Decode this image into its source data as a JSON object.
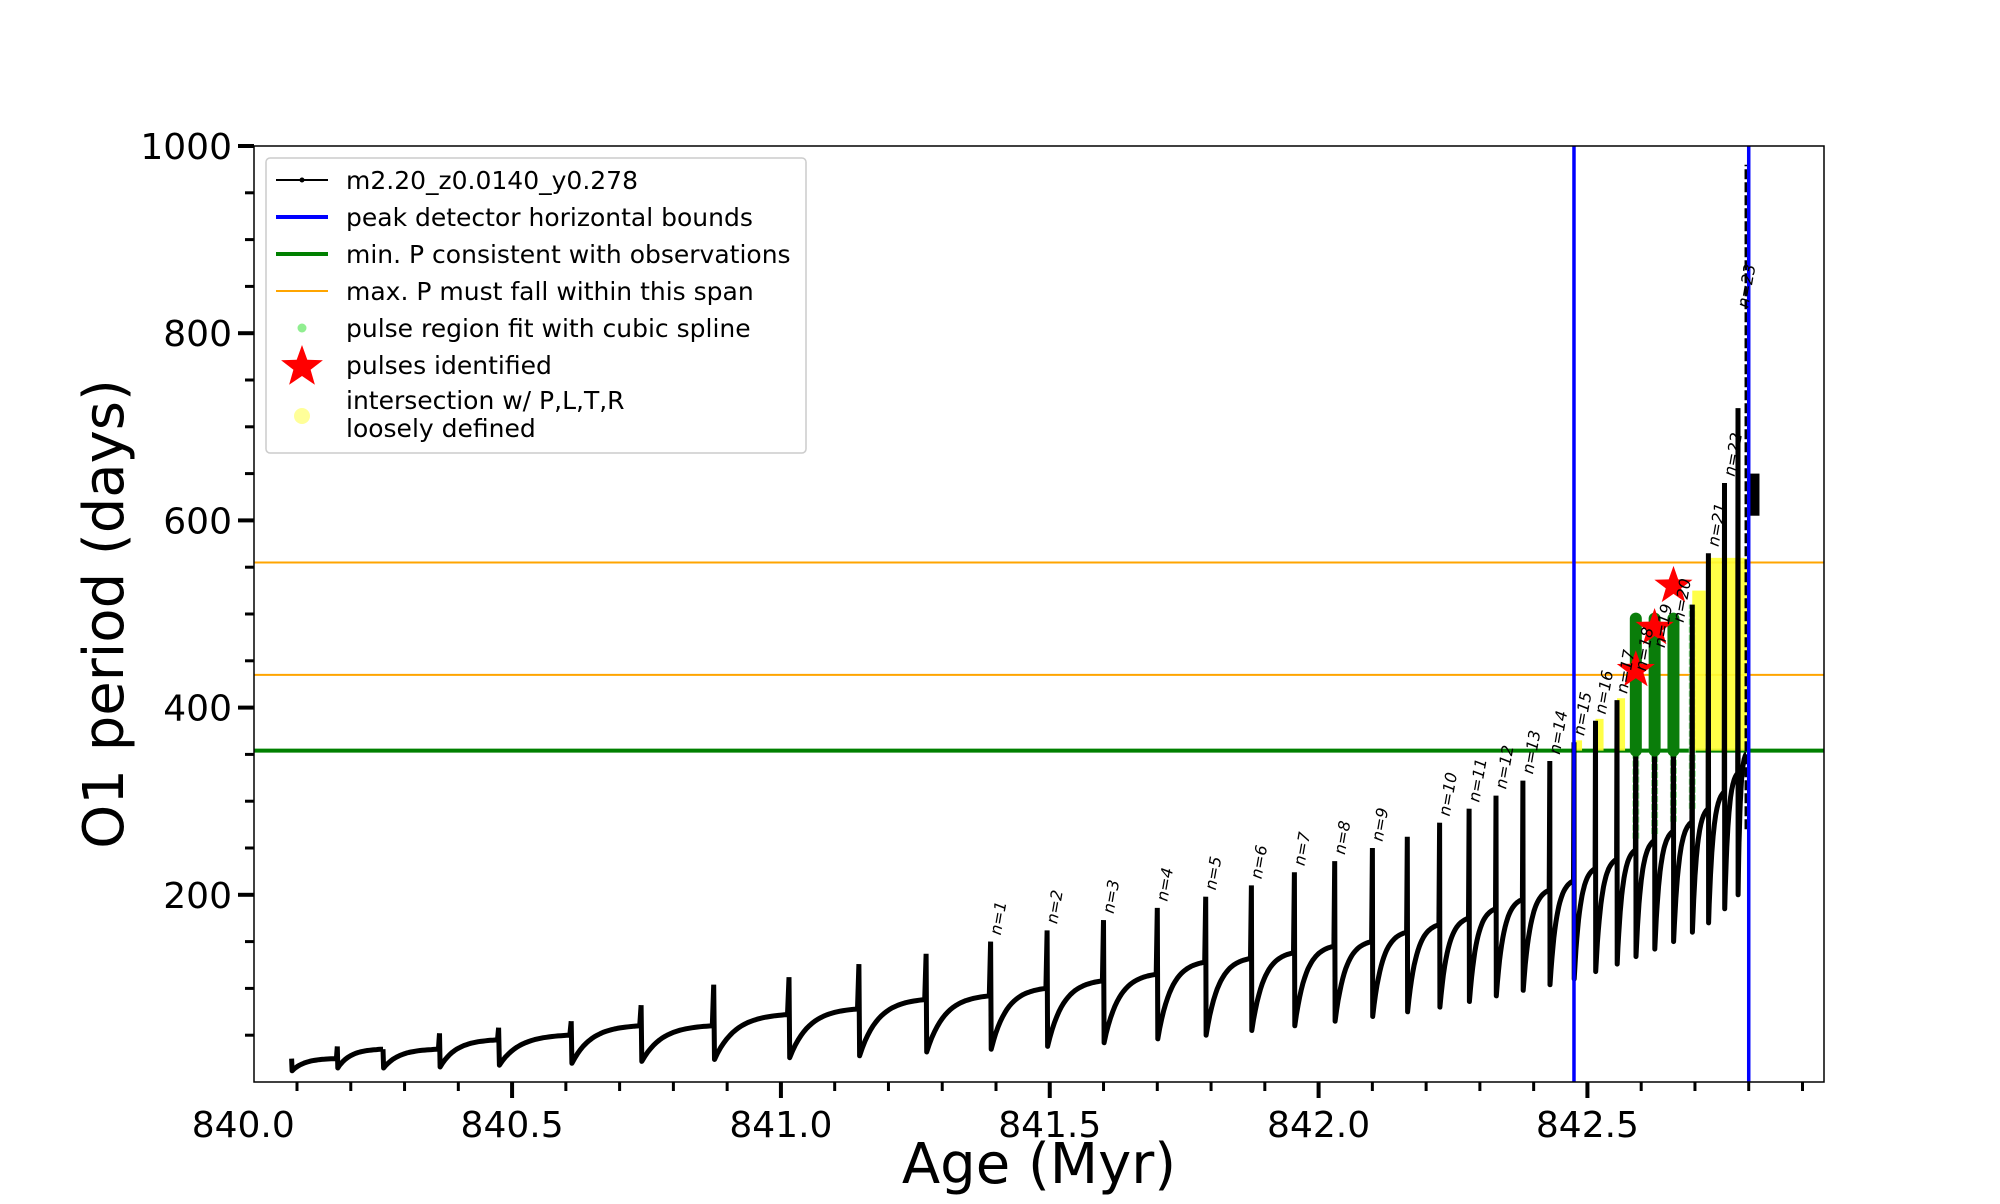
{
  "chart_data": {
    "type": "line",
    "xlabel": "Age (Myr)",
    "ylabel": "O1 period (days)",
    "xlim": [
      840.02,
      842.94
    ],
    "ylim": [
      0,
      1000
    ],
    "x_ticks": [
      840.0,
      840.5,
      841.0,
      841.5,
      842.0,
      842.5
    ],
    "x_tick_labels": [
      "840.0",
      "840.5",
      "841.0",
      "841.5",
      "842.0",
      "842.5"
    ],
    "y_ticks": [
      200,
      400,
      600,
      800,
      1000
    ],
    "y_tick_labels": [
      "200",
      "400",
      "600",
      "800",
      "1000"
    ],
    "grid": false,
    "legend_position": "upper-left",
    "legend": [
      {
        "label": "m2.20_z0.0140_y0.278",
        "kind": "line-marker",
        "color": "#000000"
      },
      {
        "label": "peak detector horizontal bounds",
        "kind": "line",
        "color": "#0000ff"
      },
      {
        "label": "min. P consistent with observations",
        "kind": "line",
        "color": "#008000"
      },
      {
        "label": "max. P must fall within this span",
        "kind": "thin-line",
        "color": "#ffa500"
      },
      {
        "label": "pulse region fit with cubic spline",
        "kind": "dot",
        "color": "#90ee90"
      },
      {
        "label": "pulses identified",
        "kind": "star",
        "color": "#ff0000"
      },
      {
        "label": "intersection w/ P,L,T,R",
        "label2": "loosely defined",
        "kind": "dot-big",
        "color": "#ffff99"
      }
    ],
    "vertical_lines": [
      {
        "x": 842.475,
        "color": "#0000ff"
      },
      {
        "x": 842.8,
        "color": "#0000ff"
      }
    ],
    "horizontal_lines": [
      {
        "y": 354,
        "color": "#008000",
        "role": "min_period"
      },
      {
        "y": 435,
        "color": "#ffa500",
        "role": "max_span_low"
      },
      {
        "y": 555,
        "color": "#ffa500",
        "role": "max_span_high"
      }
    ],
    "pulses": [
      {
        "start": 840.09,
        "base": 12,
        "end_val": 25,
        "peak": 25
      },
      {
        "start": 840.175,
        "base": 15,
        "end_val": 35,
        "peak": 38
      },
      {
        "start": 840.26,
        "base": 15,
        "end_val": 35,
        "peak": 35
      },
      {
        "start": 840.365,
        "base": 16,
        "end_val": 45,
        "peak": 52
      },
      {
        "start": 840.475,
        "base": 18,
        "end_val": 50,
        "peak": 58
      },
      {
        "start": 840.61,
        "base": 20,
        "end_val": 60,
        "peak": 65
      },
      {
        "start": 840.74,
        "base": 22,
        "end_val": 60,
        "peak": 82
      },
      {
        "start": 840.875,
        "base": 24,
        "end_val": 72,
        "peak": 104
      },
      {
        "start": 841.015,
        "base": 26,
        "end_val": 78,
        "peak": 112
      },
      {
        "start": 841.145,
        "base": 28,
        "end_val": 88,
        "peak": 126
      },
      {
        "start": 841.27,
        "base": 32,
        "end_val": 92,
        "peak": 137
      },
      {
        "start": 841.39,
        "base": 35,
        "end_val": 100,
        "peak": 150
      },
      {
        "start": 841.495,
        "base": 38,
        "end_val": 108,
        "peak": 162
      },
      {
        "start": 841.6,
        "base": 42,
        "end_val": 115,
        "peak": 173
      },
      {
        "start": 841.7,
        "base": 46,
        "end_val": 128,
        "peak": 186
      },
      {
        "start": 841.79,
        "base": 50,
        "end_val": 132,
        "peak": 198
      },
      {
        "start": 841.875,
        "base": 55,
        "end_val": 138,
        "peak": 210
      },
      {
        "start": 841.955,
        "base": 60,
        "end_val": 145,
        "peak": 224
      },
      {
        "start": 842.03,
        "base": 65,
        "end_val": 150,
        "peak": 236
      },
      {
        "start": 842.1,
        "base": 70,
        "end_val": 160,
        "peak": 250
      },
      {
        "start": 842.165,
        "base": 75,
        "end_val": 168,
        "peak": 262
      },
      {
        "start": 842.225,
        "base": 80,
        "end_val": 175,
        "peak": 277
      },
      {
        "start": 842.28,
        "base": 86,
        "end_val": 185,
        "peak": 292
      },
      {
        "start": 842.33,
        "base": 92,
        "end_val": 195,
        "peak": 306
      },
      {
        "start": 842.38,
        "base": 98,
        "end_val": 205,
        "peak": 322
      },
      {
        "start": 842.43,
        "base": 104,
        "end_val": 215,
        "peak": 343
      },
      {
        "start": 842.475,
        "base": 110,
        "end_val": 228,
        "peak": 363
      },
      {
        "start": 842.515,
        "base": 118,
        "end_val": 238,
        "peak": 386
      },
      {
        "start": 842.555,
        "base": 126,
        "end_val": 248,
        "peak": 408
      },
      {
        "start": 842.59,
        "base": 134,
        "end_val": 258,
        "peak": 432
      },
      {
        "start": 842.625,
        "base": 142,
        "end_val": 268,
        "peak": 457
      },
      {
        "start": 842.66,
        "base": 150,
        "end_val": 278,
        "peak": 484
      },
      {
        "start": 842.695,
        "base": 160,
        "end_val": 292,
        "peak": 510
      },
      {
        "start": 842.725,
        "base": 170,
        "end_val": 310,
        "peak": 565
      },
      {
        "start": 842.755,
        "base": 185,
        "end_val": 330,
        "peak": 640
      },
      {
        "start": 842.78,
        "base": 200,
        "end_val": 350,
        "peak": 720
      }
    ],
    "tail_spike": {
      "x": 842.795,
      "low": 270,
      "high": 980
    },
    "tail_segment": {
      "x_start": 842.8,
      "x_end": 842.82,
      "low": 605,
      "high": 650
    },
    "pulse_labels": [
      {
        "text": "n=1",
        "x": 841.39,
        "y": 150
      },
      {
        "text": "n=2",
        "x": 841.495,
        "y": 162
      },
      {
        "text": "n=3",
        "x": 841.6,
        "y": 173
      },
      {
        "text": "n=4",
        "x": 841.7,
        "y": 186
      },
      {
        "text": "n=5",
        "x": 841.79,
        "y": 198
      },
      {
        "text": "n=6",
        "x": 841.875,
        "y": 210
      },
      {
        "text": "n=7",
        "x": 841.955,
        "y": 224
      },
      {
        "text": "n=8",
        "x": 842.03,
        "y": 236
      },
      {
        "text": "n=9",
        "x": 842.1,
        "y": 250
      },
      {
        "text": "n=10",
        "x": 842.225,
        "y": 277
      },
      {
        "text": "n=11",
        "x": 842.28,
        "y": 292
      },
      {
        "text": "n=12",
        "x": 842.33,
        "y": 306
      },
      {
        "text": "n=13",
        "x": 842.38,
        "y": 322
      },
      {
        "text": "n=14",
        "x": 842.43,
        "y": 343
      },
      {
        "text": "n=15",
        "x": 842.475,
        "y": 363
      },
      {
        "text": "n=16",
        "x": 842.515,
        "y": 386
      },
      {
        "text": "n=17",
        "x": 842.555,
        "y": 408
      },
      {
        "text": "n=18",
        "x": 842.59,
        "y": 432
      },
      {
        "text": "n=19",
        "x": 842.625,
        "y": 457
      },
      {
        "text": "n=20",
        "x": 842.66,
        "y": 484
      },
      {
        "text": "n=21",
        "x": 842.725,
        "y": 565
      },
      {
        "text": "n=22",
        "x": 842.755,
        "y": 640
      },
      {
        "text": "n=23",
        "x": 842.78,
        "y": 820
      }
    ],
    "spline_regions": [
      {
        "x": 842.59,
        "low": 260,
        "high": 432
      },
      {
        "x": 842.625,
        "low": 265,
        "high": 457
      },
      {
        "x": 842.66,
        "low": 278,
        "high": 484
      },
      {
        "x": 842.695,
        "low": 292,
        "high": 510
      }
    ],
    "green_bars": [
      {
        "x": 842.59,
        "low": 354,
        "high": 495
      },
      {
        "x": 842.625,
        "low": 354,
        "high": 495
      },
      {
        "x": 842.66,
        "low": 354,
        "high": 495
      }
    ],
    "stars": [
      {
        "x": 842.59,
        "y": 440
      },
      {
        "x": 842.625,
        "y": 485
      },
      {
        "x": 842.66,
        "y": 530
      }
    ],
    "yellow_regions": [
      {
        "x0": 842.475,
        "x1": 842.49,
        "low": 354,
        "high": 365
      },
      {
        "x0": 842.515,
        "x1": 842.53,
        "low": 354,
        "high": 388
      },
      {
        "x0": 842.555,
        "x1": 842.57,
        "low": 354,
        "high": 410
      },
      {
        "x0": 842.695,
        "x1": 842.72,
        "low": 354,
        "high": 525
      },
      {
        "x0": 842.725,
        "x1": 842.75,
        "low": 354,
        "high": 560
      },
      {
        "x0": 842.755,
        "x1": 842.8,
        "low": 354,
        "high": 560
      }
    ]
  }
}
